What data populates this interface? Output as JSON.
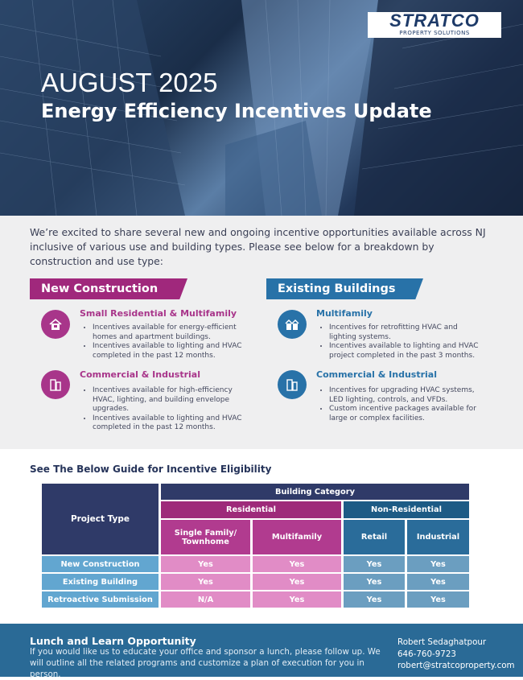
{
  "logo": {
    "brand": "STRATCO",
    "tagline": "PROPERTY SOLUTIONS"
  },
  "hero": {
    "title": "AUGUST 2025",
    "subtitle": "Energy Efficiency Incentives Update"
  },
  "intro": "We’re excited to share several new and ongoing incentive opportunities available across NJ inclusive of various use and building types. Please see below for a breakdown by construction and use type:",
  "colors": {
    "magenta": "#a0287c",
    "blue": "#2872a8",
    "navy": "#2f3a68",
    "footer": "#2a6a96"
  },
  "new_construction": {
    "label": "New Construction",
    "items": [
      {
        "icon": "house-icon",
        "title": "Small Residential & Multifamily",
        "bullets": [
          "Incentives available for energy-efficient homes and apartment buildings.",
          "Incentives available to lighting and HVAC completed in the past 12 months."
        ]
      },
      {
        "icon": "office-buildings-icon",
        "title": "Commercial & Industrial",
        "bullets": [
          "Incentives available for high-efficiency HVAC, lighting, and building envelope upgrades.",
          "Incentives available to lighting and HVAC completed in the past 12 months."
        ]
      }
    ]
  },
  "existing_buildings": {
    "label": "Existing Buildings",
    "items": [
      {
        "icon": "apartment-icon",
        "title": "Multifamily",
        "bullets": [
          "Incentives for retrofitting HVAC and lighting systems.",
          "Incentives available to lighting and HVAC project completed in the past 3 months."
        ]
      },
      {
        "icon": "office-buildings-icon",
        "title": "Commercial & Industrial",
        "bullets": [
          "Incentives for upgrading HVAC systems, LED lighting, controls, and VFDs.",
          "Custom incentive packages available for large or complex facilities."
        ]
      }
    ]
  },
  "guide": {
    "title": "See The Below Guide for Incentive Eligibility",
    "project_type": "Project Type",
    "building_category": "Building Category",
    "residential": "Residential",
    "non_residential": "Non-Residential",
    "columns": [
      "Single Family/ Townhome",
      "Multifamily",
      "Retail",
      "Industrial"
    ],
    "rows": [
      {
        "label": "New Construction",
        "values": [
          "Yes",
          "Yes",
          "Yes",
          "Yes"
        ]
      },
      {
        "label": "Existing Building",
        "values": [
          "Yes",
          "Yes",
          "Yes",
          "Yes"
        ]
      },
      {
        "label": "Retroactive Submission",
        "values": [
          "N/A",
          "Yes",
          "Yes",
          "Yes"
        ]
      }
    ]
  },
  "footer": {
    "title": "Lunch and Learn Opportunity",
    "text": "If you would like us to educate your office and sponsor a lunch, please follow up. We will outline all the related programs and customize a plan of execution for you in person.",
    "name": "Robert Sedaghatpour",
    "phone": "646-760-9723",
    "email": "robert@stratcoproperty.com"
  }
}
